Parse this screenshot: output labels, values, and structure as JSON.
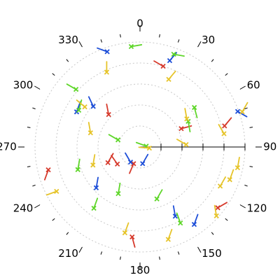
{
  "chart_data": {
    "type": "scatter",
    "projection": "polar",
    "angle_direction": "clockwise",
    "angle_zero": "top",
    "angle_unit": "degrees",
    "r_range": [
      0,
      1
    ],
    "grid": true,
    "angle_tick_labels": [
      "0",
      "30",
      "60",
      "90",
      "120",
      "150",
      "180",
      "210",
      "240",
      "270",
      "300",
      "330"
    ],
    "marker": "x",
    "series": [
      {
        "color": "#d63a2c",
        "points": [
          {
            "theta": 316,
            "r": 0.43,
            "dir": 349
          },
          {
            "theta": 244,
            "r": 0.34,
            "dir": 30
          },
          {
            "theta": 233,
            "r": 0.27,
            "dir": 325
          },
          {
            "theta": 201,
            "r": 0.17,
            "dir": 203
          },
          {
            "theta": 185,
            "r": 0.86,
            "dir": 165
          },
          {
            "theta": 128,
            "r": 0.94,
            "dir": 60
          },
          {
            "theta": 76,
            "r": 0.83,
            "dir": 40
          },
          {
            "theta": 16,
            "r": 0.8,
            "dir": 300
          },
          {
            "theta": 66,
            "r": 0.43,
            "dir": 75
          },
          {
            "theta": 256,
            "r": 0.9,
            "dir": 200
          }
        ]
      },
      {
        "color": "#1e4fd8",
        "points": [
          {
            "theta": 341,
            "r": 0.96,
            "dir": 290
          },
          {
            "theta": 299,
            "r": 0.69,
            "dir": 20
          },
          {
            "theta": 311,
            "r": 0.59,
            "dir": 335
          },
          {
            "theta": 227,
            "r": 0.57,
            "dir": 10
          },
          {
            "theta": 145,
            "r": 0.9,
            "dir": 20
          },
          {
            "theta": 153,
            "r": 0.74,
            "dir": 350
          },
          {
            "theta": 212,
            "r": 0.17,
            "dir": 330
          },
          {
            "theta": 171,
            "r": 0.16,
            "dir": 30
          },
          {
            "theta": 19,
            "r": 0.87,
            "dir": 40
          },
          {
            "theta": 70,
            "r": 0.99,
            "dir": 120
          }
        ]
      },
      {
        "color": "#5fd62a",
        "points": [
          {
            "theta": 355,
            "r": 0.96,
            "dir": 80
          },
          {
            "theta": 20,
            "r": 0.94,
            "dir": 100
          },
          {
            "theta": 312,
            "r": 0.82,
            "dir": 300
          },
          {
            "theta": 301,
            "r": 0.68,
            "dir": 15
          },
          {
            "theta": 250,
            "r": 0.63,
            "dir": 10
          },
          {
            "theta": 217,
            "r": 0.73,
            "dir": 20
          },
          {
            "theta": 205,
            "r": 0.49,
            "dir": 10
          },
          {
            "theta": 162,
            "r": 0.52,
            "dir": 30
          },
          {
            "theta": 152,
            "r": 0.82,
            "dir": 340
          },
          {
            "theta": 54,
            "r": 0.64,
            "dir": 165
          },
          {
            "theta": 62,
            "r": 0.52,
            "dir": 170
          },
          {
            "theta": 82,
            "r": 0.06,
            "dir": 290
          },
          {
            "theta": 288,
            "r": 0.22,
            "dir": 300
          }
        ]
      },
      {
        "color": "#e6c42a",
        "points": [
          {
            "theta": 336,
            "r": 0.78,
            "dir": 0
          },
          {
            "theta": 23,
            "r": 0.7,
            "dir": 40
          },
          {
            "theta": 306,
            "r": 0.65,
            "dir": 310
          },
          {
            "theta": 286,
            "r": 0.49,
            "dir": 350
          },
          {
            "theta": 249,
            "r": 0.48,
            "dir": 10
          },
          {
            "theta": 242,
            "r": 0.9,
            "dir": 250
          },
          {
            "theta": 190,
            "r": 0.83,
            "dir": 20
          },
          {
            "theta": 163,
            "r": 0.92,
            "dir": 20
          },
          {
            "theta": 132,
            "r": 0.98,
            "dir": 350
          },
          {
            "theta": 116,
            "r": 0.85,
            "dir": 30
          },
          {
            "theta": 110,
            "r": 0.91,
            "dir": 20
          },
          {
            "theta": 102,
            "r": 0.95,
            "dir": 10
          },
          {
            "theta": 87,
            "r": 0.44,
            "dir": 300
          },
          {
            "theta": 81,
            "r": 0.81,
            "dir": 330
          },
          {
            "theta": 59,
            "r": 0.52,
            "dir": 350
          },
          {
            "theta": 71,
            "r": 1.03,
            "dir": 30
          },
          {
            "theta": 97,
            "r": 0.09,
            "dir": 275
          }
        ]
      }
    ]
  }
}
